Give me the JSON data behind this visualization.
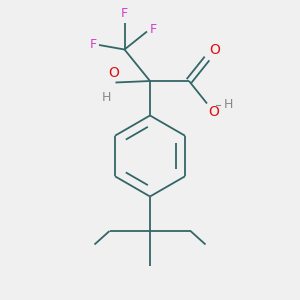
{
  "bg_color": "#f0f0f0",
  "bond_color": "#336666",
  "F_color": "#cc44cc",
  "O_color": "#dd1111",
  "H_color": "#888888",
  "line_width": 1.3,
  "font_size": 9,
  "figsize": [
    3.0,
    3.0
  ],
  "dpi": 100,
  "xlim": [
    0,
    10
  ],
  "ylim": [
    0,
    10
  ]
}
